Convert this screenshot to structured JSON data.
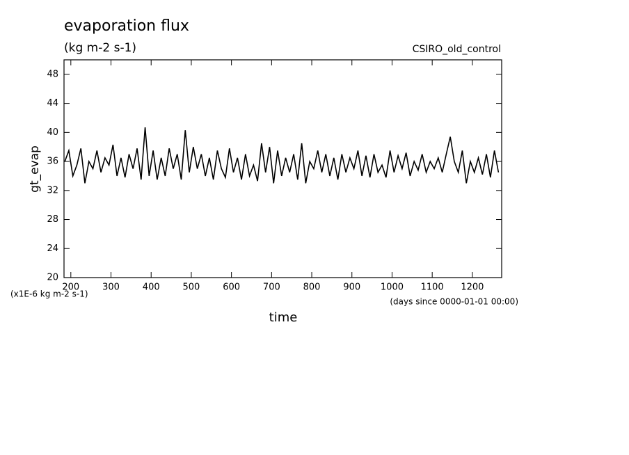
{
  "chart_data": {
    "type": "line",
    "title": "evaporation flux",
    "subtitle": "(kg m-2 s-1)",
    "dataset_label": "CSIRO_old_control",
    "y_label": "gt_evap",
    "x_label": "time",
    "y_units_note": "(x1E-6 kg m-2 s-1)",
    "x_units_note": "(days since 0000-01-01 00:00)",
    "xlim": [
      183,
      1273
    ],
    "ylim": [
      20,
      50
    ],
    "xticks": [
      200,
      300,
      400,
      500,
      600,
      700,
      800,
      900,
      1000,
      1100,
      1200
    ],
    "yticks": [
      20,
      24,
      28,
      32,
      36,
      40,
      44,
      48
    ],
    "x": [
      185,
      195,
      205,
      215,
      225,
      235,
      245,
      255,
      265,
      275,
      285,
      295,
      305,
      315,
      325,
      335,
      345,
      355,
      365,
      375,
      385,
      395,
      405,
      415,
      425,
      435,
      445,
      455,
      465,
      475,
      485,
      495,
      505,
      515,
      525,
      535,
      545,
      555,
      565,
      575,
      585,
      595,
      605,
      615,
      625,
      635,
      645,
      655,
      665,
      675,
      685,
      695,
      705,
      715,
      725,
      735,
      745,
      755,
      765,
      775,
      785,
      795,
      805,
      815,
      825,
      835,
      845,
      855,
      865,
      875,
      885,
      895,
      905,
      915,
      925,
      935,
      945,
      955,
      965,
      975,
      985,
      995,
      1005,
      1015,
      1025,
      1035,
      1045,
      1055,
      1065,
      1075,
      1085,
      1095,
      1105,
      1115,
      1125,
      1135,
      1145,
      1155,
      1165,
      1175,
      1185,
      1195,
      1205,
      1215,
      1225,
      1235,
      1245,
      1255,
      1265
    ],
    "series": [
      {
        "color": "#000000",
        "values": [
          36,
          37.5,
          34,
          35.5,
          37.8,
          33,
          36,
          35,
          37.5,
          34.5,
          36.5,
          35.5,
          38.3,
          34,
          36.5,
          33.8,
          37,
          35,
          37.8,
          33.5,
          40.7,
          34,
          37.5,
          33.5,
          36.5,
          34,
          37.8,
          35,
          37,
          33.5,
          40.3,
          34.5,
          38,
          35,
          37,
          34,
          36.5,
          33.5,
          37.5,
          35,
          33.8,
          37.8,
          34.5,
          36.5,
          33.5,
          37,
          34,
          35.5,
          33.3,
          38.5,
          34.5,
          38,
          33,
          37.5,
          34,
          36.5,
          34.5,
          37,
          33.5,
          38.5,
          33,
          36,
          35,
          37.5,
          34.5,
          37,
          34,
          36.5,
          33.5,
          37,
          34.5,
          36.5,
          35,
          37.5,
          34,
          36.8,
          33.8,
          37,
          34.5,
          35.5,
          33.8,
          37.5,
          34.5,
          36.8,
          35,
          37.2,
          34,
          36,
          34.8,
          37,
          34.5,
          36,
          35,
          36.5,
          34.5,
          37,
          39.4,
          36,
          34.5,
          37.5,
          33,
          36,
          34.5,
          36.5,
          34.2,
          37,
          33.8,
          37.5,
          34.5
        ]
      }
    ]
  }
}
